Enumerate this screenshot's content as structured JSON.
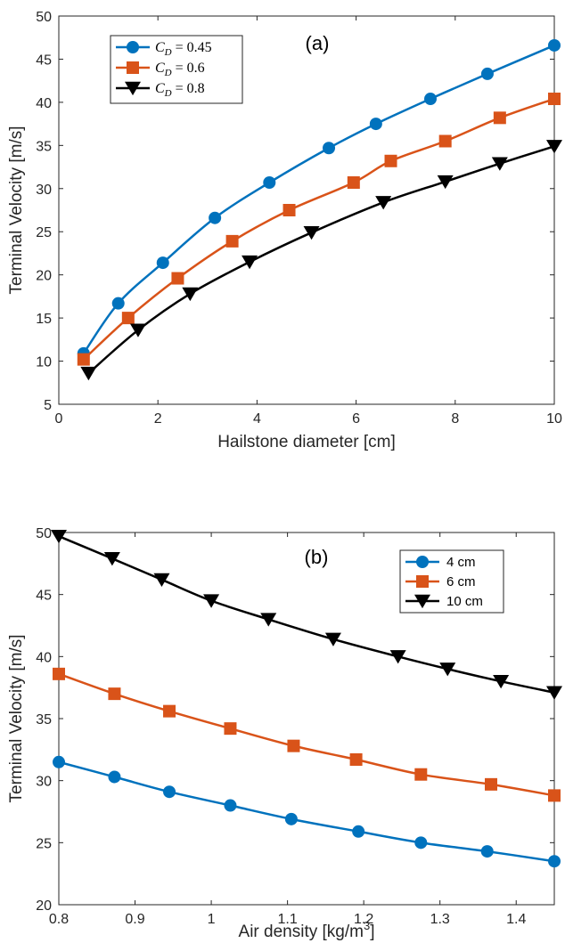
{
  "colors": {
    "blue": "#0072BD",
    "orange": "#D95319",
    "black": "#000000"
  },
  "chart_data": [
    {
      "type": "line",
      "tag": "(a)",
      "xlabel": "Hailstone diameter [cm]",
      "ylabel": "Terminal Velocity [m/s]",
      "xlim": [
        0,
        10
      ],
      "ylim": [
        5,
        50
      ],
      "xticks": [
        0,
        2,
        4,
        6,
        8,
        10
      ],
      "yticks": [
        5,
        10,
        15,
        20,
        25,
        30,
        35,
        40,
        45,
        50
      ],
      "grid": false,
      "legend": "top-left",
      "series": [
        {
          "name": "C_D = 0.45",
          "legend_sub": "D",
          "legend_pre": "C",
          "legend_post": " = 0.45",
          "color": "#0072BD",
          "marker": "circle",
          "x": [
            0.5,
            1.2,
            2.1,
            3.15,
            4.25,
            5.45,
            6.4,
            7.5,
            8.65,
            10
          ],
          "y": [
            10.9,
            16.7,
            21.4,
            26.6,
            30.7,
            34.7,
            37.5,
            40.4,
            43.3,
            46.6
          ]
        },
        {
          "name": "C_D = 0.6",
          "legend_sub": "D",
          "legend_pre": "C",
          "legend_post": " = 0.6",
          "color": "#D95319",
          "marker": "square",
          "x": [
            0.5,
            1.4,
            2.4,
            3.5,
            4.65,
            5.95,
            6.7,
            7.8,
            8.9,
            10
          ],
          "y": [
            10.2,
            15.0,
            19.6,
            23.9,
            27.5,
            30.7,
            33.2,
            35.5,
            38.2,
            40.4
          ]
        },
        {
          "name": "C_D = 0.8",
          "legend_sub": "D",
          "legend_pre": "C",
          "legend_post": " = 0.8",
          "color": "#000000",
          "marker": "triangle-down",
          "x": [
            0.6,
            1.6,
            2.65,
            3.85,
            5.1,
            6.55,
            7.8,
            8.9,
            10
          ],
          "y": [
            8.6,
            13.6,
            17.8,
            21.5,
            24.9,
            28.4,
            30.8,
            32.9,
            34.9
          ]
        }
      ]
    },
    {
      "type": "line",
      "tag": "(b)",
      "xlabel": "Air density [kg/m",
      "xlabel_sup": "3",
      "xlabel_post": "]",
      "ylabel": "Terminal Velocity [m/s]",
      "xlim": [
        0.8,
        1.45
      ],
      "ylim": [
        20,
        50
      ],
      "xticks": [
        0.8,
        0.9,
        1,
        1.1,
        1.2,
        1.3,
        1.4
      ],
      "xticklabels": [
        "0.8",
        "0.9",
        "1",
        "1.1",
        "1.2",
        "1.3",
        "1.4"
      ],
      "yticks": [
        20,
        25,
        30,
        35,
        40,
        45,
        50
      ],
      "grid": false,
      "legend": "top-right",
      "series": [
        {
          "name": "4 cm",
          "color": "#0072BD",
          "marker": "circle",
          "x": [
            0.8,
            0.873,
            0.945,
            1.025,
            1.105,
            1.193,
            1.275,
            1.362,
            1.45
          ],
          "y": [
            31.5,
            30.3,
            29.1,
            28.0,
            26.9,
            25.9,
            25.0,
            24.3,
            23.5
          ]
        },
        {
          "name": "6 cm",
          "color": "#D95319",
          "marker": "square",
          "x": [
            0.8,
            0.873,
            0.945,
            1.025,
            1.108,
            1.19,
            1.275,
            1.367,
            1.45
          ],
          "y": [
            38.6,
            37.0,
            35.6,
            34.2,
            32.8,
            31.7,
            30.5,
            29.7,
            28.8
          ]
        },
        {
          "name": "10 cm",
          "color": "#000000",
          "marker": "triangle-down",
          "x": [
            0.8,
            0.87,
            0.935,
            1.0,
            1.075,
            1.16,
            1.245,
            1.31,
            1.38,
            1.45
          ],
          "y": [
            49.7,
            47.9,
            46.2,
            44.5,
            43.0,
            41.4,
            40.0,
            39.0,
            38.0,
            37.1
          ]
        }
      ]
    }
  ]
}
